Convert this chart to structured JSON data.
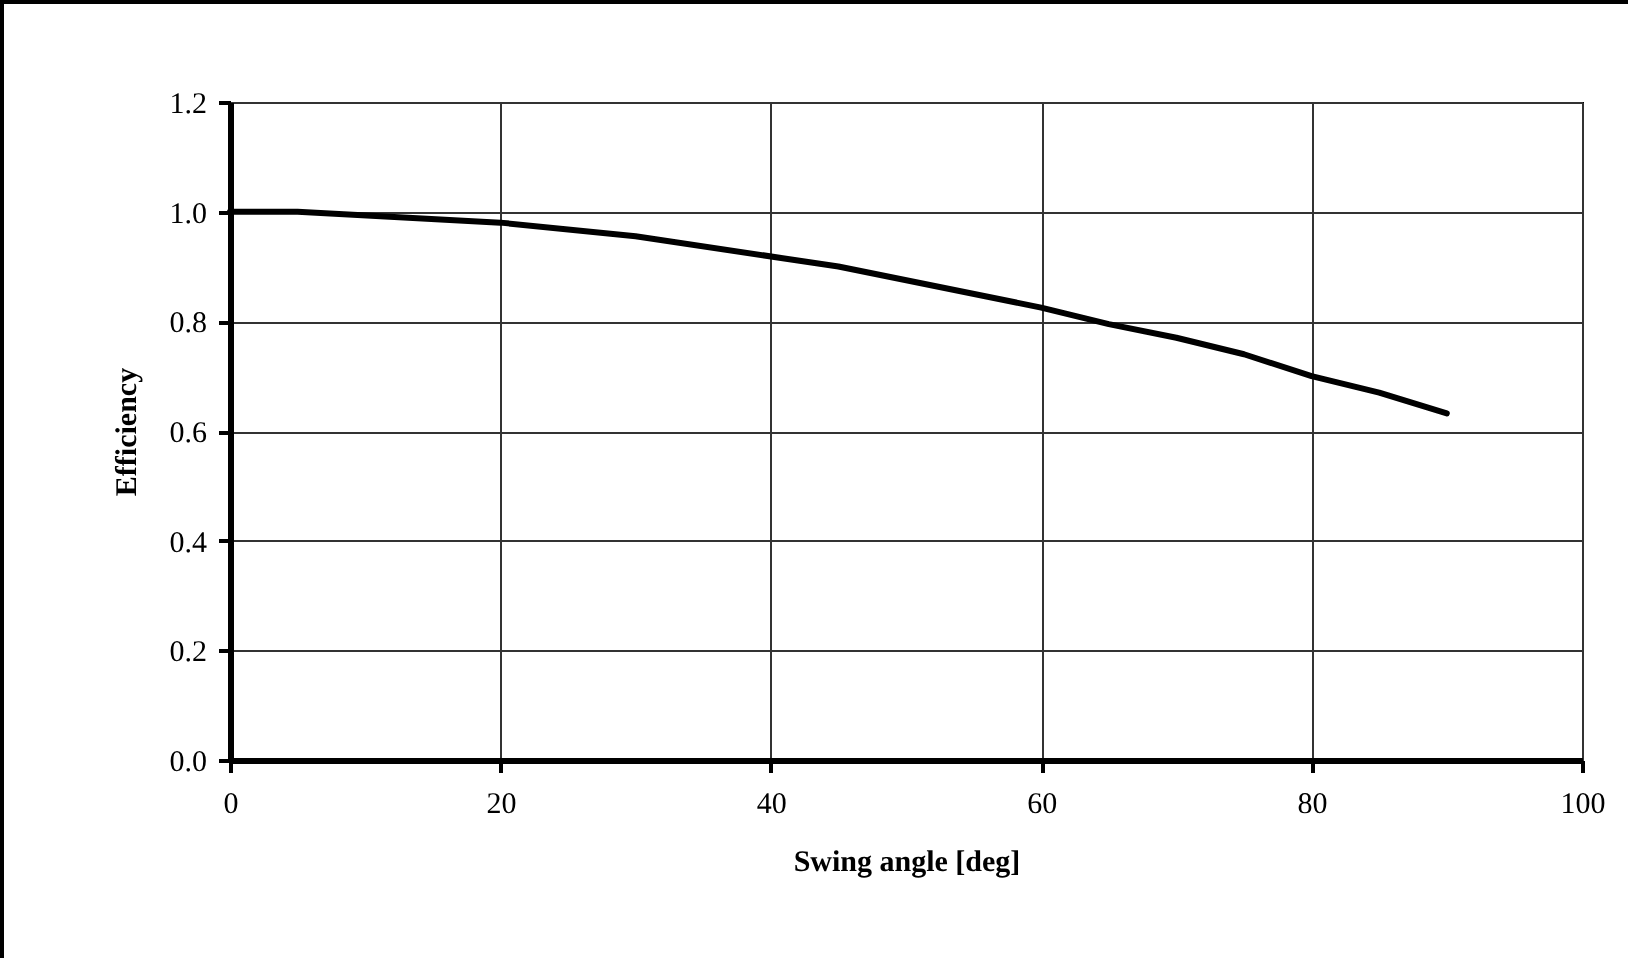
{
  "chart_data": {
    "type": "line",
    "xlabel": "Swing angle [deg]",
    "ylabel": "Efficiency",
    "x": [
      0,
      5,
      20,
      30,
      45,
      60,
      65,
      70,
      75,
      80,
      85,
      90
    ],
    "series": [
      {
        "color": "#000000",
        "values": [
          1.0,
          1.0,
          0.98,
          0.955,
          0.9,
          0.825,
          0.795,
          0.77,
          0.74,
          0.7,
          0.67,
          0.632
        ]
      }
    ],
    "xlim": [
      0,
      100
    ],
    "xticks": [
      0,
      20,
      40,
      60,
      80,
      100
    ],
    "ylim": [
      0,
      1.2
    ],
    "yticks": [
      {
        "value": 0,
        "label": "0.0"
      },
      {
        "value": 0.2,
        "label": "0.2"
      },
      {
        "value": 0.4,
        "label": "0.4"
      },
      {
        "value": 0.6,
        "label": "0.6"
      },
      {
        "value": 0.8,
        "label": "0.8"
      },
      {
        "value": 1.0,
        "label": "1.0"
      },
      {
        "value": 1.2,
        "label": "1.2"
      }
    ],
    "grid": true,
    "marker": "none",
    "line_style": "solid"
  }
}
